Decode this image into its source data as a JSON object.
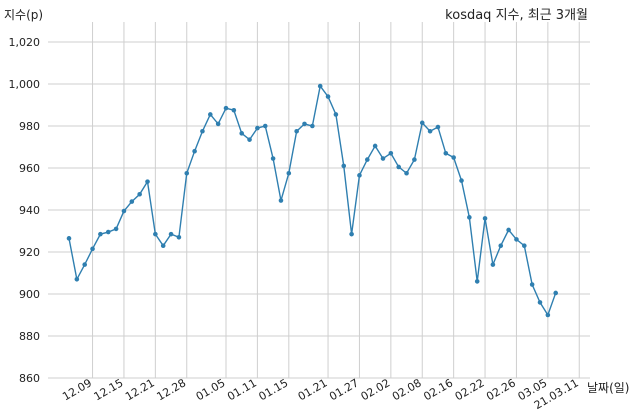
{
  "chart_data": {
    "type": "line",
    "title": "kosdaq 지수, 최근 3개월",
    "xlabel": "날짜(일)",
    "ylabel": "지수(p)",
    "ylim": [
      860,
      1025
    ],
    "yticks": [
      860,
      880,
      900,
      920,
      940,
      960,
      980,
      1000,
      1020
    ],
    "ytick_labels": [
      "860",
      "880",
      "900",
      "920",
      "940",
      "960",
      "980",
      "1,000",
      "1,020"
    ],
    "xtick_labels": [
      "12.09",
      "12.15",
      "12.21",
      "12.28",
      "01.05",
      "01.11",
      "01.15",
      "01.21",
      "01.27",
      "02.02",
      "02.08",
      "02.16",
      "02.22",
      "02.26",
      "03.05",
      "21.03.11"
    ],
    "xtick_positions": [
      3,
      7,
      11,
      15,
      20,
      24,
      28,
      33,
      37,
      41,
      45,
      49,
      53,
      57,
      61,
      65
    ],
    "grid": true,
    "series": [
      {
        "color": "#2f7fb0",
        "values": [
          926.5,
          907,
          914,
          921.5,
          928.5,
          929.5,
          931,
          939.5,
          944,
          947.5,
          953.5,
          928.5,
          923,
          928.5,
          927,
          957.5,
          968,
          977.5,
          985.5,
          981,
          988.5,
          987.5,
          976.5,
          973.5,
          979,
          980,
          964.5,
          944.5,
          957.5,
          977.5,
          981,
          980,
          999,
          994,
          985.5,
          961,
          928.5,
          956.5,
          964,
          970.5,
          964.5,
          967,
          960.5,
          957.5,
          964,
          981.5,
          977.5,
          979.5,
          967,
          965,
          954,
          936.5,
          906,
          936,
          914,
          923,
          930.5,
          926,
          923,
          904.5,
          896,
          890,
          900.5
        ]
      }
    ]
  }
}
